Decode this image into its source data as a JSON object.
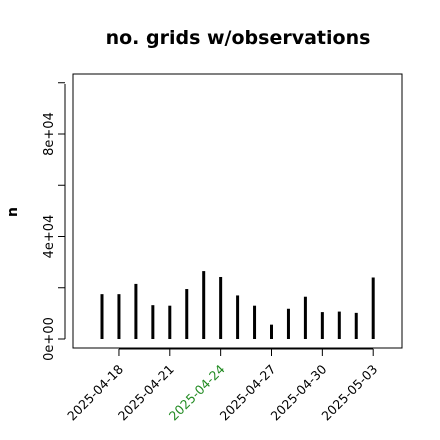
{
  "chart_data": {
    "type": "bar",
    "title": "no. grids w/observations",
    "xlabel": "",
    "ylabel": "n",
    "categories": [
      "2025-04-17",
      "2025-04-18",
      "2025-04-19",
      "2025-04-20",
      "2025-04-21",
      "2025-04-22",
      "2025-04-23",
      "2025-04-24",
      "2025-04-25",
      "2025-04-26",
      "2025-04-27",
      "2025-04-28",
      "2025-04-29",
      "2025-04-30",
      "2025-05-01",
      "2025-05-02",
      "2025-05-03"
    ],
    "values": [
      17500,
      17500,
      21500,
      13200,
      13000,
      19500,
      26500,
      24200,
      17000,
      13000,
      5600,
      11800,
      16500,
      10500,
      10700,
      10200,
      24000
    ],
    "ylim": [
      0,
      100000
    ],
    "yticks": [
      0,
      40000,
      80000
    ],
    "ytick_labels": [
      "0e+00",
      "4e+04",
      "8e+04"
    ],
    "xticks": [
      "2025-04-18",
      "2025-04-21",
      "2025-04-24",
      "2025-04-27",
      "2025-04-30",
      "2025-05-03"
    ],
    "xtick_colors": [
      "#000000",
      "#000000",
      "#228b22",
      "#000000",
      "#000000",
      "#000000"
    ],
    "grid": false,
    "bar_color": "#000000"
  }
}
